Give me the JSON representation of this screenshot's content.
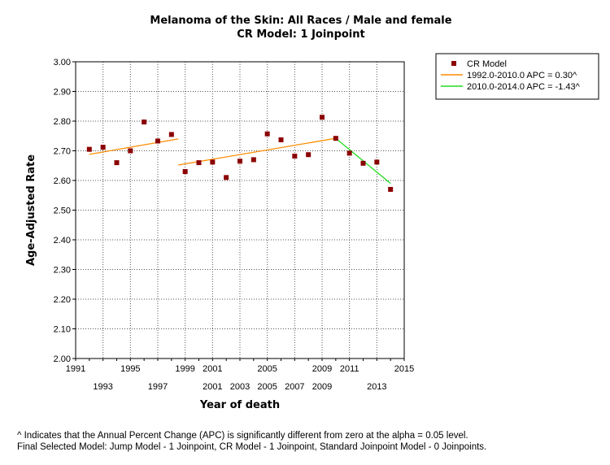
{
  "chart_data": {
    "type": "scatter",
    "title": "Melanoma of the Skin: All Races / Male and female",
    "subtitle": "CR Model: 1 Joinpoint",
    "xlabel": "Year of death",
    "ylabel": "Age-Adjusted Rate",
    "xlim": [
      1991,
      2015
    ],
    "ylim": [
      2.0,
      3.0
    ],
    "x_ticks_upper": [
      "1991",
      "1995",
      "1999",
      "2001",
      "2005",
      "2009",
      "2011",
      "2015"
    ],
    "x_ticks_upper_values": [
      1991,
      1995,
      1999,
      2001,
      2005,
      2009,
      2011,
      2015
    ],
    "x_ticks_lower": [
      "1993",
      "1997",
      "2001",
      "2003",
      "2005",
      "2007",
      "2009",
      "2013"
    ],
    "x_ticks_lower_values": [
      1993,
      1997,
      2001,
      2003,
      2005,
      2007,
      2009,
      2013
    ],
    "y_ticks": [
      "2.00",
      "2.10",
      "2.20",
      "2.30",
      "2.40",
      "2.50",
      "2.60",
      "2.70",
      "2.80",
      "2.90",
      "3.00"
    ],
    "y_tick_values": [
      2.0,
      2.1,
      2.2,
      2.3,
      2.4,
      2.5,
      2.6,
      2.7,
      2.8,
      2.9,
      3.0
    ],
    "grid": true,
    "legend_position": "top-right",
    "points": {
      "name": "CR Model",
      "color": "#8b0000",
      "x": [
        1992,
        1993,
        1994,
        1995,
        1996,
        1997,
        1998,
        1999,
        2000,
        2001,
        2002,
        2003,
        2004,
        2005,
        2006,
        2007,
        2008,
        2009,
        2010,
        2011,
        2012,
        2013,
        2014
      ],
      "y": [
        2.705,
        2.712,
        2.66,
        2.7,
        2.797,
        2.733,
        2.755,
        2.63,
        2.66,
        2.662,
        2.61,
        2.665,
        2.67,
        2.757,
        2.737,
        2.682,
        2.687,
        2.813,
        2.742,
        2.692,
        2.658,
        2.662,
        2.57
      ]
    },
    "series": [
      {
        "name": "1992.0-2010.0 APC  =  0.30^",
        "color": "#ff8c00",
        "segments": [
          {
            "x": [
              1992,
              1998.5
            ],
            "y": [
              2.688,
              2.74
            ]
          },
          {
            "x": [
              1998.5,
              2010
            ],
            "y": [
              2.652,
              2.742
            ]
          }
        ]
      },
      {
        "name": "2010.0-2014.0 APC  = -1.43^",
        "color": "#22dd22",
        "segments": [
          {
            "x": [
              2010,
              2014
            ],
            "y": [
              2.742,
              2.59
            ]
          }
        ]
      }
    ]
  },
  "footnote": {
    "line1": "^ Indicates that the Annual Percent Change (APC) is significantly different from zero at the alpha = 0.05 level.",
    "line2": "Final Selected Model: Jump Model - 1 Joinpoint, CR Model - 1 Joinpoint, Standard Joinpoint Model - 0 Joinpoints."
  }
}
